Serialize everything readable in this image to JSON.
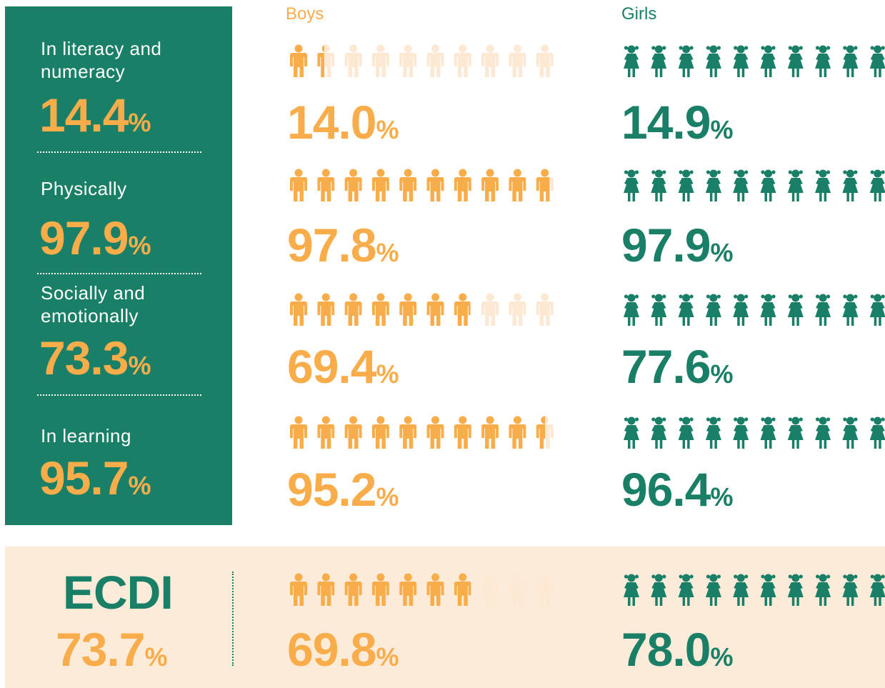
{
  "headers": {
    "boys": "Boys",
    "girls": "Girls"
  },
  "unit": "%",
  "rows": [
    {
      "label": "In literacy and numeracy",
      "total": "14.4",
      "boys": "14.0",
      "girls": "14.9"
    },
    {
      "label": "Physically",
      "total": "97.9",
      "boys": "97.8",
      "girls": "97.9"
    },
    {
      "label": "Socially and emotionally",
      "total": "73.3",
      "boys": "69.4",
      "girls": "77.6"
    },
    {
      "label": "In learning",
      "total": "95.7",
      "boys": "95.2",
      "girls": "96.4"
    }
  ],
  "ecdi": {
    "label": "ECDI",
    "total": "73.7",
    "boys": "69.8",
    "girls": "78.0"
  }
}
